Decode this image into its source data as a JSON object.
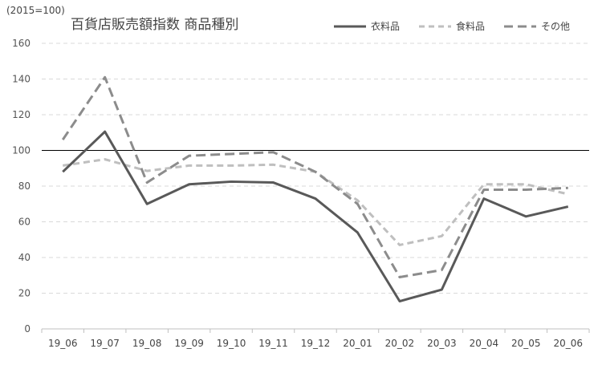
{
  "chart_data": {
    "type": "line",
    "title": "百貨店販売額指数 商品種別",
    "unit_label": "(2015=100)",
    "categories": [
      "19_06",
      "19_07",
      "19_08",
      "19_09",
      "19_10",
      "19_11",
      "19_12",
      "20_01",
      "20_02",
      "20_03",
      "20_04",
      "20_05",
      "20_06"
    ],
    "ylim": [
      0,
      160
    ],
    "yticks": [
      0,
      20,
      40,
      60,
      80,
      100,
      120,
      140,
      160
    ],
    "reference_line": 100,
    "grid": true,
    "legend_position": "top-right",
    "series": [
      {
        "name": "衣料品",
        "values": [
          88,
          110.5,
          70,
          81,
          82.5,
          82,
          73,
          54,
          15.5,
          22,
          73,
          63,
          68.5
        ],
        "color": "#595959",
        "style": "solid"
      },
      {
        "name": "食料品",
        "values": [
          91.5,
          95,
          88.5,
          91.5,
          91.5,
          92,
          88,
          72,
          47,
          52,
          81,
          81,
          75.5
        ],
        "color": "#bfbfbf",
        "style": "dashed"
      },
      {
        "name": "その他",
        "values": [
          106,
          141,
          82,
          97,
          98,
          99,
          88,
          70,
          29,
          33,
          78,
          78,
          79
        ],
        "color": "#8c8c8c",
        "style": "dashed"
      }
    ]
  }
}
